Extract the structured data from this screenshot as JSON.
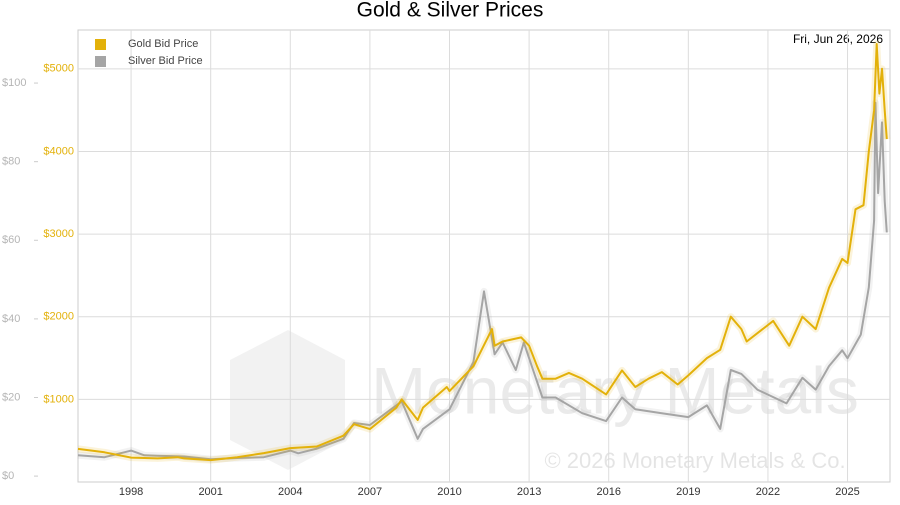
{
  "chart_data": {
    "type": "line",
    "title": "Gold & Silver Prices",
    "date_label": "Fri, Jun 26, 2026",
    "watermark": "Monetary Metals",
    "copyright": "© 2026 Monetary Metals & Co.",
    "xlim": [
      1996.0,
      2026.6
    ],
    "xticks": [
      1998,
      2001,
      2004,
      2007,
      2010,
      2013,
      2016,
      2019,
      2022,
      2025
    ],
    "ylim": [
      0,
      5470
    ],
    "yticks": [
      {
        "value": 1000,
        "label": "$1000"
      },
      {
        "value": 2000,
        "label": "$2000"
      },
      {
        "value": 3000,
        "label": "$3000"
      },
      {
        "value": 4000,
        "label": "$4000"
      },
      {
        "value": 5000,
        "label": "$5000"
      }
    ],
    "y2lim": [
      -1.5,
      113.5
    ],
    "y2ticks": [
      {
        "value": 0,
        "label": "$0"
      },
      {
        "value": 20,
        "label": "$20"
      },
      {
        "value": 40,
        "label": "$40"
      },
      {
        "value": 60,
        "label": "$60"
      },
      {
        "value": 80,
        "label": "$80"
      },
      {
        "value": 100,
        "label": "$100"
      }
    ],
    "grid": true,
    "legend": "top-left",
    "series": [
      {
        "name": "Gold Bid Price",
        "color": "#e3b10a",
        "axis": "y",
        "x": [
          1996.0,
          1997,
          1998,
          1999,
          1999.75,
          2000,
          2001,
          2002,
          2003,
          2004,
          2005,
          2006,
          2006.4,
          2007,
          2008,
          2008.2,
          2008.8,
          2009,
          2009.9,
          2010,
          2010.9,
          2011.6,
          2011.7,
          2012,
          2012.7,
          2013,
          2013.3,
          2013.5,
          2014,
          2014.5,
          2015,
          2015.9,
          2016.5,
          2017,
          2017.5,
          2018,
          2018.6,
          2019,
          2019.7,
          2020.2,
          2020.6,
          2021,
          2021.2,
          2022.2,
          2022.8,
          2023.3,
          2023.8,
          2024,
          2024.3,
          2024.8,
          2025,
          2025.3,
          2025.6,
          2025.8,
          2026.0,
          2026.1,
          2026.2,
          2026.3,
          2026.4,
          2026.48
        ],
        "values": [
          400,
          360,
          295,
          285,
          300,
          285,
          265,
          300,
          350,
          410,
          430,
          560,
          700,
          640,
          900,
          1000,
          750,
          900,
          1150,
          1100,
          1400,
          1850,
          1650,
          1700,
          1750,
          1650,
          1400,
          1250,
          1250,
          1320,
          1250,
          1060,
          1350,
          1150,
          1250,
          1330,
          1180,
          1290,
          1500,
          1600,
          2000,
          1850,
          1700,
          1950,
          1650,
          2000,
          1850,
          2050,
          2350,
          2700,
          2650,
          3300,
          3350,
          4000,
          4500,
          5300,
          4700,
          5000,
          4500,
          4150
        ]
      },
      {
        "name": "Silver Bid Price",
        "color": "#a5a5a5",
        "axis": "y2",
        "x": [
          1996.0,
          1997,
          1998,
          1998.5,
          1999,
          2000,
          2001,
          2002,
          2003,
          2004,
          2004.3,
          2005,
          2006,
          2006.4,
          2007,
          2008.2,
          2008.8,
          2009,
          2010,
          2010.9,
          2011.3,
          2011.7,
          2012,
          2012.5,
          2012.8,
          2013,
          2013.5,
          2014,
          2015,
          2015.9,
          2016.5,
          2017,
          2018,
          2019,
          2019.7,
          2020.2,
          2020.6,
          2021,
          2021.6,
          2022.7,
          2023.3,
          2023.8,
          2024.3,
          2024.8,
          2025,
          2025.5,
          2025.8,
          2026.0,
          2026.05,
          2026.15,
          2026.3,
          2026.4,
          2026.48
        ],
        "values": [
          5.3,
          4.8,
          6.5,
          5.3,
          5.2,
          5.0,
          4.3,
          4.6,
          4.8,
          6.5,
          5.8,
          7.0,
          9.5,
          13.5,
          13,
          19,
          9.5,
          12,
          17,
          29,
          47,
          31,
          34,
          27,
          34,
          30,
          20,
          20,
          16,
          14,
          20,
          17,
          16,
          15,
          18,
          12,
          27,
          26,
          22,
          18.5,
          25,
          22,
          28,
          32,
          30,
          36,
          48,
          65,
          95,
          72,
          90,
          70,
          62
        ]
      }
    ]
  }
}
